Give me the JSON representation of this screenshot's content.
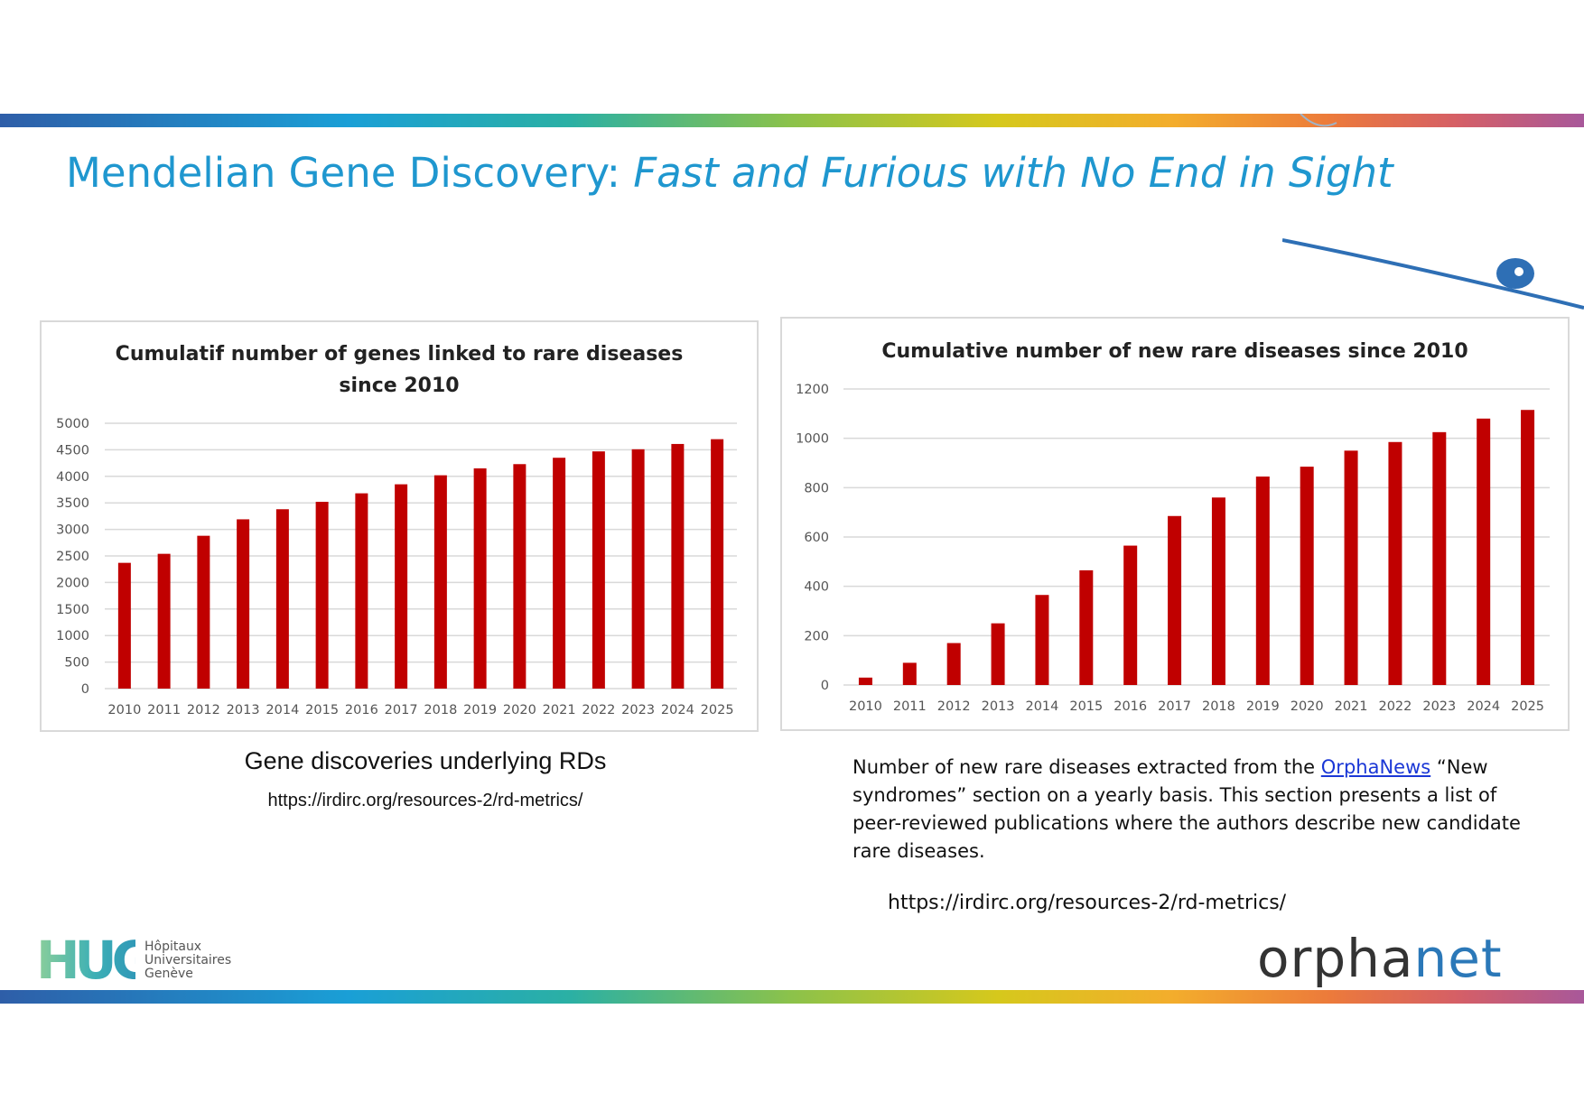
{
  "slide": {
    "title_plain": "Mendelian Gene Discovery: ",
    "title_italic": "Fast and Furious with No End in Sight"
  },
  "colors": {
    "accent_title": "#1f97cf",
    "bar": "#c00000",
    "link": "#1a37d6"
  },
  "chart_data": [
    {
      "type": "bar",
      "title_lines": [
        "Cumulatif number of genes linked to rare diseases",
        "since 2010"
      ],
      "categories": [
        "2010",
        "2011",
        "2012",
        "2013",
        "2014",
        "2015",
        "2016",
        "2017",
        "2018",
        "2019",
        "2020",
        "2021",
        "2022",
        "2023",
        "2024",
        "2025"
      ],
      "values": [
        2370,
        2540,
        2880,
        3190,
        3380,
        3520,
        3680,
        3850,
        4020,
        4150,
        4230,
        4350,
        4470,
        4510,
        4610,
        4700
      ],
      "ylim": [
        0,
        5000
      ],
      "yticks": [
        "0",
        "500",
        "1000",
        "1500",
        "2000",
        "2500",
        "3000",
        "3500",
        "4000",
        "4500",
        "5000"
      ],
      "xlabel": "",
      "ylabel": "",
      "grid": true,
      "legend": "none"
    },
    {
      "type": "bar",
      "title_lines": [
        "Cumulative number of new rare diseases since 2010"
      ],
      "categories": [
        "2010",
        "2011",
        "2012",
        "2013",
        "2014",
        "2015",
        "2016",
        "2017",
        "2018",
        "2019",
        "2020",
        "2021",
        "2022",
        "2023",
        "2024",
        "2025"
      ],
      "values": [
        30,
        90,
        170,
        250,
        365,
        465,
        565,
        685,
        760,
        845,
        885,
        950,
        985,
        1025,
        1080,
        1115
      ],
      "ylim": [
        0,
        1200
      ],
      "yticks": [
        "0",
        "200",
        "400",
        "600",
        "800",
        "1000",
        "1200"
      ],
      "xlabel": "",
      "ylabel": "",
      "grid": true,
      "legend": "none"
    }
  ],
  "left_panel": {
    "caption": "Gene discoveries underlying RDs",
    "url": "https://irdirc.org/resources-2/rd-metrics/"
  },
  "right_panel": {
    "desc_before_link": "Number of new rare diseases extracted from the ",
    "link_text": "OrphaNews",
    "desc_after_link": " “New syndromes” section on a yearly basis. This section presents a list of peer-reviewed publications where the authors describe new candidate rare diseases.",
    "url": "https://irdirc.org/resources-2/rd-metrics/"
  },
  "logos": {
    "hug_mark": "HUG",
    "hug_name": [
      "Hôpitaux",
      "Universitaires",
      "Genève"
    ],
    "orphanet_a": "orpha",
    "orphanet_b": "net"
  }
}
